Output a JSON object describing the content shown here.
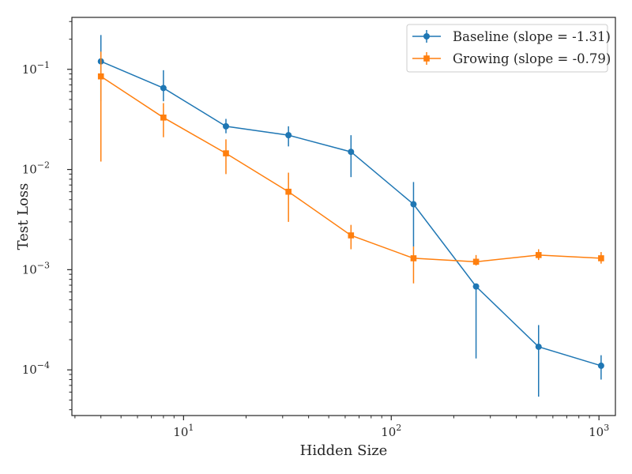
{
  "chart_data": {
    "type": "line",
    "title": "",
    "xlabel": "Hidden Size",
    "ylabel": "Test Loss",
    "xscale": "log",
    "yscale": "log",
    "xlim": [
      2.9,
      1200
    ],
    "ylim": [
      3.5e-05,
      0.33
    ],
    "xticks": [
      {
        "value": 10,
        "base": "10",
        "exp": "1"
      },
      {
        "value": 100,
        "base": "10",
        "exp": "2"
      },
      {
        "value": 1000,
        "base": "10",
        "exp": "3"
      }
    ],
    "yticks": [
      {
        "value": 0.0001,
        "base": "10",
        "exp": "−4"
      },
      {
        "value": 0.001,
        "base": "10",
        "exp": "−3"
      },
      {
        "value": 0.01,
        "base": "10",
        "exp": "−2"
      },
      {
        "value": 0.1,
        "base": "10",
        "exp": "−1"
      }
    ],
    "grid": false,
    "legend_position": "top-right",
    "series": [
      {
        "name": "Baseline (slope = -1.31)",
        "color": "#1f77b4",
        "marker": "circle",
        "x": [
          4,
          8,
          16,
          32,
          64,
          128,
          256,
          512,
          1024
        ],
        "y": [
          0.12,
          0.065,
          0.027,
          0.022,
          0.015,
          0.0045,
          0.00068,
          0.00017,
          0.00011
        ],
        "err_low": [
          0.048,
          0.048,
          0.023,
          0.017,
          0.0084,
          0.0017,
          0.00013,
          5.4e-05,
          8e-05
        ],
        "err_high": [
          0.22,
          0.098,
          0.032,
          0.027,
          0.022,
          0.0075,
          0.00066,
          0.00028,
          0.00014
        ]
      },
      {
        "name": "Growing (slope = -0.79)",
        "color": "#ff7f0e",
        "marker": "square",
        "x": [
          4,
          8,
          16,
          32,
          64,
          128,
          256,
          512,
          1024
        ],
        "y": [
          0.085,
          0.033,
          0.0145,
          0.006,
          0.0022,
          0.0013,
          0.0012,
          0.0014,
          0.0013
        ],
        "err_low": [
          0.012,
          0.021,
          0.009,
          0.003,
          0.0016,
          0.00073,
          0.0011,
          0.00125,
          0.00115
        ],
        "err_high": [
          0.15,
          0.046,
          0.02,
          0.0093,
          0.0028,
          0.0017,
          0.0014,
          0.0016,
          0.0015
        ]
      }
    ]
  }
}
